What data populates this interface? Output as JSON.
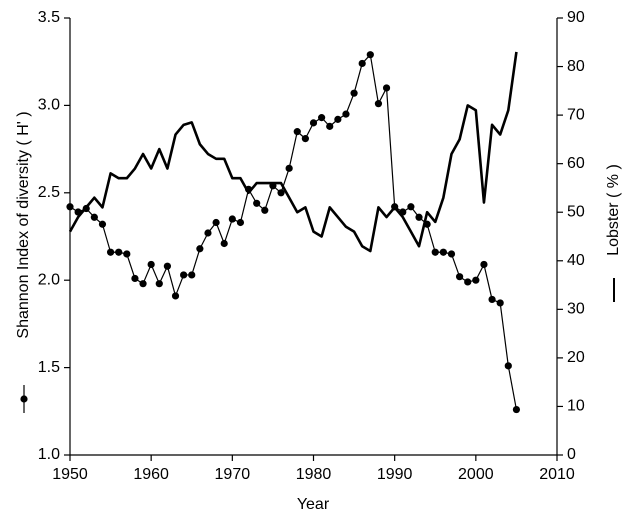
{
  "chart_data": {
    "type": "line",
    "x_label": "Year",
    "y_label": "Shannon Index of diversity ( H' )",
    "y2_label": "Lobster ( % )",
    "xlim": [
      1950,
      2010
    ],
    "xticks": [
      1950,
      1960,
      1970,
      1980,
      1990,
      2000,
      2010
    ],
    "ylim": [
      1.0,
      3.5
    ],
    "yticks": [
      {
        "value": 1.0,
        "label": "1.0"
      },
      1.5,
      {
        "value": 2.0,
        "label": "2.0"
      },
      2.5,
      {
        "value": 3.0,
        "label": "3.0"
      },
      3.5
    ],
    "y2lim": [
      0,
      90
    ],
    "y2ticks": [
      0,
      10,
      20,
      30,
      40,
      50,
      60,
      70,
      80,
      90
    ],
    "grid": false,
    "x": [
      1950,
      1951,
      1952,
      1953,
      1954,
      1955,
      1956,
      1957,
      1958,
      1959,
      1960,
      1961,
      1962,
      1963,
      1964,
      1965,
      1966,
      1967,
      1968,
      1969,
      1970,
      1971,
      1972,
      1973,
      1974,
      1975,
      1976,
      1977,
      1978,
      1979,
      1980,
      1981,
      1982,
      1983,
      1984,
      1985,
      1986,
      1987,
      1988,
      1989,
      1990,
      1991,
      1992,
      1993,
      1994,
      1995,
      1996,
      1997,
      1998,
      1999,
      2000,
      2001,
      2002,
      2003,
      2004,
      2005
    ],
    "series": [
      {
        "color": "#000000",
        "markers": true,
        "values": [
          2.42,
          2.39,
          2.41,
          2.36,
          2.32,
          2.16,
          2.16,
          2.15,
          2.01,
          1.98,
          2.09,
          1.98,
          2.08,
          1.91,
          2.03,
          2.03,
          2.18,
          2.27,
          2.33,
          2.21,
          2.35,
          2.33,
          2.52,
          2.44,
          2.4,
          2.54,
          2.5,
          2.64,
          2.85,
          2.81,
          2.9,
          2.93,
          2.88,
          2.92,
          2.95,
          3.07,
          3.24,
          3.29,
          3.01,
          3.1,
          2.42,
          2.39,
          2.42,
          2.36,
          2.32,
          2.16,
          2.16,
          2.15,
          2.02,
          1.99,
          2.0,
          2.09,
          1.89,
          1.87,
          1.51,
          1.26
        ]
      },
      {
        "color": "#000000",
        "markers": false,
        "axis": "y2",
        "values": [
          46,
          49,
          51,
          53,
          51,
          58,
          57,
          57,
          59,
          62,
          59,
          63,
          59,
          66,
          68,
          68.5,
          64,
          62,
          61,
          61,
          57,
          57,
          54,
          56,
          56,
          56,
          56,
          53,
          50,
          51,
          46,
          45,
          51,
          49,
          47,
          46,
          43,
          42,
          51,
          49,
          51,
          49,
          46,
          43,
          50,
          48,
          53,
          62,
          65,
          72,
          71,
          52,
          68,
          66,
          71,
          83
        ]
      }
    ]
  }
}
